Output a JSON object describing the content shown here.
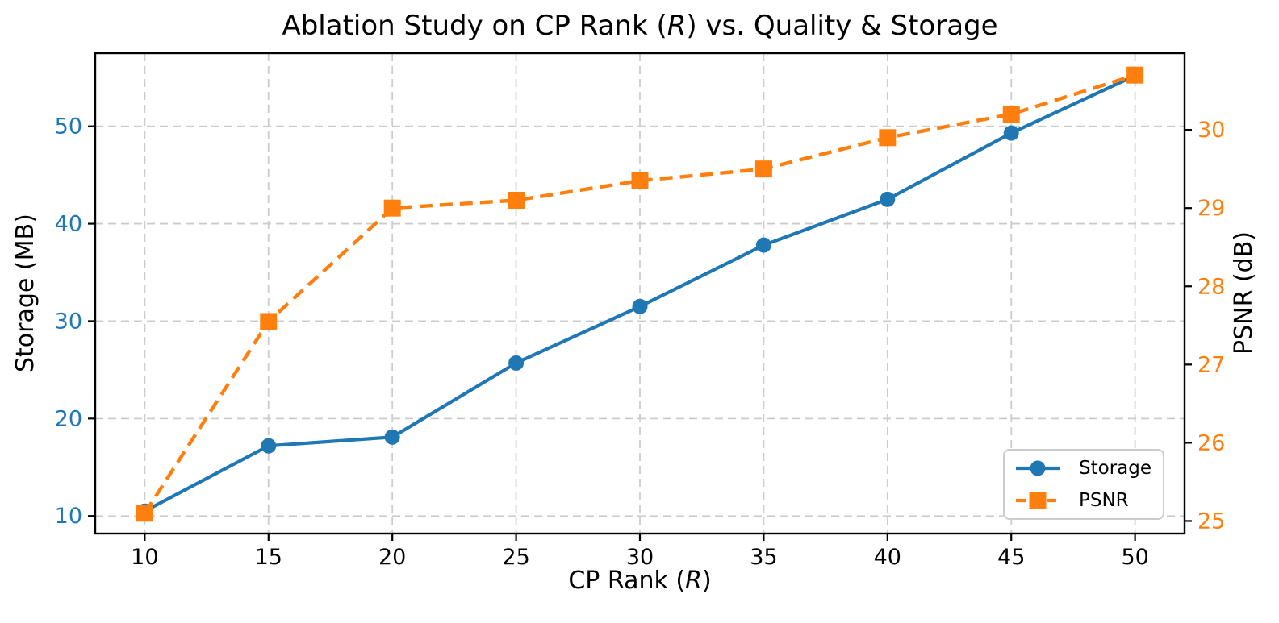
{
  "figure": {
    "background": "#ffffff"
  },
  "chart_data": {
    "type": "line",
    "title": "Ablation Study on CP Rank (R) vs. Quality & Storage",
    "title_parts": [
      {
        "text": "Ablation Study on CP Rank (",
        "italic": false
      },
      {
        "text": "R",
        "italic": true
      },
      {
        "text": ") vs. Quality & Storage",
        "italic": false
      }
    ],
    "xlabel": "CP Rank (R)",
    "xlabel_parts": [
      {
        "text": "CP Rank (",
        "italic": false
      },
      {
        "text": "R",
        "italic": true
      },
      {
        "text": ")",
        "italic": false
      }
    ],
    "x": [
      10,
      15,
      20,
      25,
      30,
      35,
      40,
      45,
      50
    ],
    "series": [
      {
        "name": "Storage",
        "axis": "left",
        "color": "#1f77b4",
        "linestyle": "solid",
        "marker": "circle",
        "values": [
          10.5,
          17.2,
          18.1,
          25.7,
          31.5,
          37.8,
          42.5,
          49.3,
          55.2
        ]
      },
      {
        "name": "PSNR",
        "axis": "right",
        "color": "#ff7f0e",
        "linestyle": "dashed",
        "marker": "square",
        "values": [
          25.1,
          27.55,
          29.0,
          29.1,
          29.35,
          29.5,
          29.9,
          30.2,
          30.7
        ]
      }
    ],
    "x_axis": {
      "ticks": [
        10,
        15,
        20,
        25,
        30,
        35,
        40,
        45,
        50
      ],
      "lim": [
        8,
        52
      ],
      "label_color": "#000000"
    },
    "left_axis": {
      "label": "Storage (MB)",
      "color": "#1f77b4",
      "ticks": [
        10,
        20,
        30,
        40,
        50
      ],
      "lim": [
        8.2,
        57.5
      ]
    },
    "right_axis": {
      "label": "PSNR (dB)",
      "color": "#ff7f0e",
      "ticks": [
        25,
        26,
        27,
        28,
        29,
        30
      ],
      "lim": [
        24.84,
        30.98
      ]
    },
    "grid": {
      "show": true,
      "color": "#cccccc"
    },
    "legend": {
      "position": "lower-right",
      "entries": [
        "Storage",
        "PSNR"
      ]
    }
  }
}
